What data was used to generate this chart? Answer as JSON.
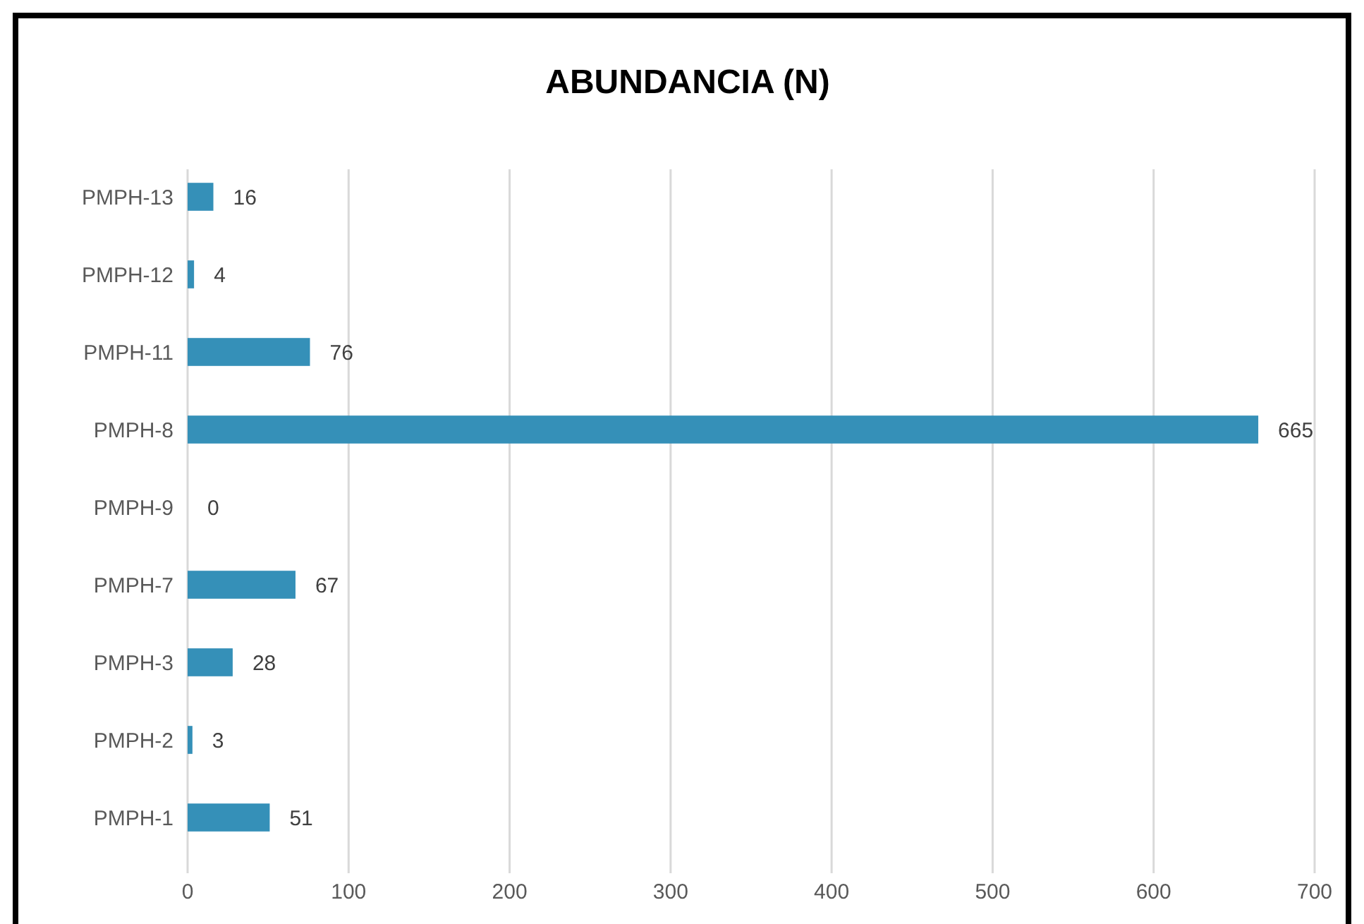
{
  "chart_data": {
    "type": "bar",
    "orientation": "horizontal",
    "title": "ABUNDANCIA (N)",
    "categories": [
      "PMPH-13",
      "PMPH-12",
      "PMPH-11",
      "PMPH-8",
      "PMPH-9",
      "PMPH-7",
      "PMPH-3",
      "PMPH-2",
      "PMPH-1"
    ],
    "values": [
      16,
      4,
      76,
      665,
      0,
      67,
      28,
      3,
      51
    ],
    "color": "#3590b8",
    "xlim": [
      0,
      700
    ],
    "xticks": [
      0,
      100,
      200,
      300,
      400,
      500,
      600,
      700
    ],
    "grid": "x",
    "data_labels": true
  }
}
